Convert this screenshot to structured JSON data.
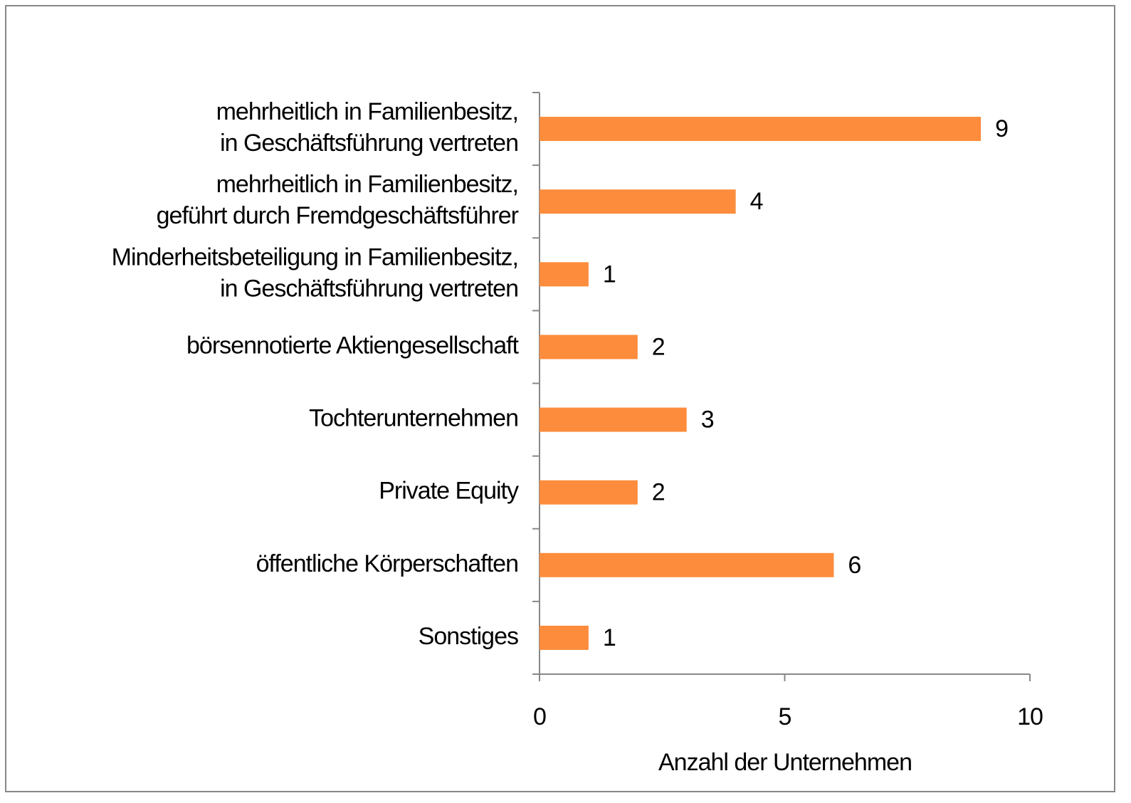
{
  "chart_data": {
    "type": "barh",
    "categories": [
      [
        "mehrheitlich in Familienbesitz,",
        "in Geschäftsführung vertreten"
      ],
      [
        "mehrheitlich in Familienbesitz,",
        "geführt durch Fremdgeschäftsführer"
      ],
      [
        "Minderheitsbeteiligung in Familienbesitz,",
        "in Geschäftsführung vertreten"
      ],
      [
        "börsennotierte Aktiengesellschaft"
      ],
      [
        "Tochterunternehmen"
      ],
      [
        "Private Equity"
      ],
      [
        "öffentliche Körperschaften"
      ],
      [
        "Sonstiges"
      ]
    ],
    "values": [
      9,
      4,
      1,
      2,
      3,
      2,
      6,
      1
    ],
    "color": "#fd8c3c",
    "xlim": [
      0,
      10
    ],
    "xticks": [
      0,
      5,
      10
    ],
    "xlabel": "Anzahl der Unternehmen",
    "grid": false
  }
}
